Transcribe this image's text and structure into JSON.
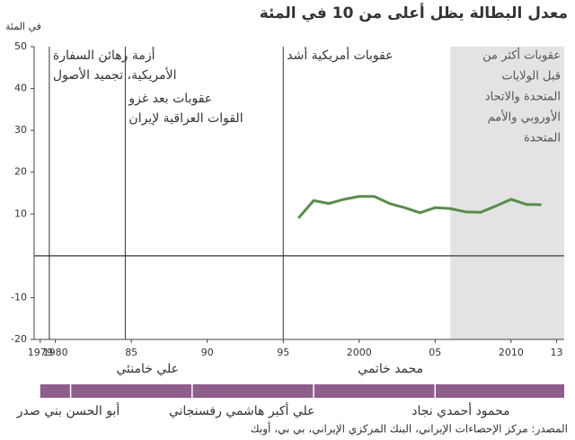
{
  "chart_data": {
    "type": "line",
    "title": "معدل البطالة يظل أعلى من 10 في المئة",
    "ylabel": "في المئة",
    "x": [
      1996,
      1997,
      1998,
      1999,
      2000,
      2001,
      2002,
      2003,
      2004,
      2005,
      2006,
      2007,
      2008,
      2009,
      2010,
      2011,
      2012
    ],
    "series": [
      {
        "color": "#5b8c4e",
        "values": [
          9,
          13.2,
          12.5,
          13.5,
          14.2,
          14.2,
          12.5,
          11.5,
          10.3,
          11.5,
          11.3,
          10.5,
          10.4,
          11.9,
          13.5,
          12.3,
          12.2
        ]
      }
    ],
    "xlim": [
      1978.6,
      2013.5
    ],
    "xticks": [
      1979,
      1980,
      {
        "value": 1985,
        "label": "85"
      },
      {
        "value": 1990,
        "label": "90"
      },
      {
        "value": 1995,
        "label": "95"
      },
      2000,
      {
        "value": 2005,
        "label": "05"
      },
      2010,
      {
        "value": 2013,
        "label": "13"
      }
    ],
    "ylim": [
      -20,
      50
    ],
    "yticks": [
      -20,
      -10,
      10,
      20,
      30,
      40,
      50
    ],
    "baseline": 0,
    "events": [
      {
        "x": 1979.6,
        "lines": [
          "أزمة رهائن السفارة",
          "الأمريكية، تجميد الأصول"
        ]
      },
      {
        "x": 1984.6,
        "lines": [
          "عقوبات بعد غزو",
          "القوات العراقية لإيران"
        ]
      },
      {
        "x": 1995,
        "lines": [
          "عقوبات أمريكية أشد"
        ]
      }
    ],
    "shade": {
      "from": 2006,
      "to": 2013.5,
      "color": "#e3e3e3",
      "lines": [
        "عقوبات أكثر من",
        "قبل الولايات",
        "المتحدة والاتحاد",
        "الأوروبي والأمم",
        "المتحدة"
      ]
    },
    "presidents": [
      {
        "name": "أبو الحسن بني صدر",
        "start": 1979,
        "end": 1981
      },
      {
        "name": "علي خامنئي",
        "start": 1981,
        "end": 1989
      },
      {
        "name": "علي أكبر هاشمي رفسنجاني",
        "start": 1989,
        "end": 1997
      },
      {
        "name": "محمد خاتمي",
        "start": 1997,
        "end": 2005
      },
      {
        "name": "محمود أحمدي نجاد",
        "start": 2005,
        "end": 2013.5
      }
    ],
    "president_color": "#8e5e8c",
    "source": "المصدر: مركز الإحصاءات الإيراني، البنك المركزي الإيراني، بي بي، أوبك"
  }
}
